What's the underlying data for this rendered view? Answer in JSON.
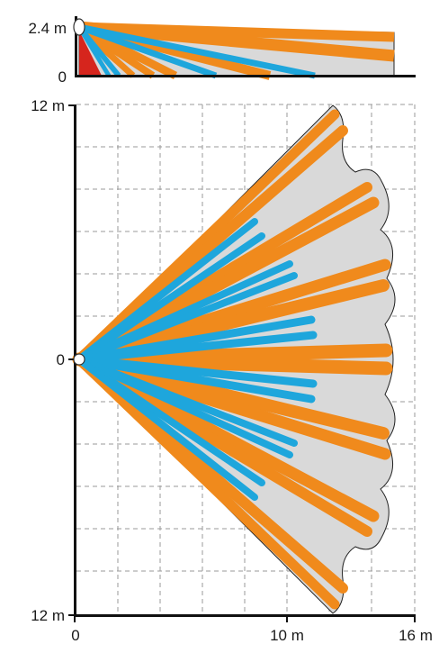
{
  "side_view": {
    "y_max_label": "2.4 m",
    "y_zero_label": "0"
  },
  "top_view": {
    "y_top_label": "12 m",
    "y_mid_label": "0",
    "y_bottom_label": "12 m",
    "x_labels": [
      "0",
      "10 m",
      "16 m"
    ]
  },
  "colors": {
    "orange_beam": "#f08a1c",
    "blue_beam": "#1ea6dc",
    "red_zone": "#d6251d",
    "coverage_fill": "#d9d9d9",
    "grid": "#9a9a9a",
    "axis": "#111111"
  },
  "detection": {
    "range_m": 16,
    "lateral_m": 12,
    "mount_height_m": 2.4
  }
}
